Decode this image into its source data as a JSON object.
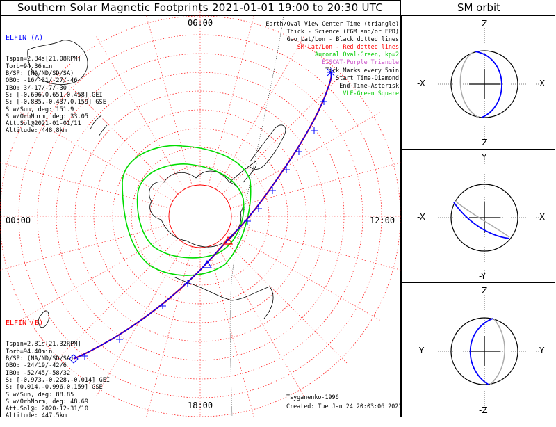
{
  "header": {
    "title": "Southern Solar Magnetic Footprints 2021-01-01 19:00 to 20:30 UTC",
    "orbit_title": "SM orbit"
  },
  "time_labels": {
    "top": "06:00",
    "left": "00:00",
    "right": "12:00",
    "bottom": "18:00"
  },
  "elfin_a": {
    "name": "ELFIN (A)",
    "lines": [
      "Tspin=2.84s[21.08RPM]",
      "Torb=94.36min",
      "B/SP: (NA/ND/SD/SA)",
      "OBO: -16/-31/-27/-46",
      "IBO: 3/-17/-7/-30",
      "S: [-0.606,0.651,0.458] GEI",
      "S: [-0.885,-0.437,0.159] GSE",
      "S w/Sun, deg: 151.9",
      "S w/OrbNorm, deg: 33.05",
      "Att.Sol@2021-01-01/11",
      "Altitude: 448.8km"
    ],
    "color": "#0000ff"
  },
  "elfin_b": {
    "name": "ELFIN (B)",
    "lines": [
      "Tspin=2.81s[21.32RPM]",
      "Torb=94.40min",
      "B/SP: (NA/ND/SD/SA)",
      "OBO: -24/19/-42/6",
      "IBO: -52/45/-58/32",
      "S: [-0.973,-0.228,-0.014] GEI",
      "S: [0.014,-0.996,0.159] GSE",
      "S w/Sun, deg: 88.85",
      "S w/OrbNorm, deg: 48.69",
      "Att.Sol@: 2020-12-31/10",
      "Altitude: 447.5km"
    ],
    "color": "#ff0000"
  },
  "legend": [
    {
      "text": "Earth/Oval View Center Time (triangle)",
      "color": "#000000"
    },
    {
      "text": "Thick - Science (FGM and/or EPD)",
      "color": "#000000"
    },
    {
      "text": "Geo Lat/Lon - Black dotted lines",
      "color": "#000000"
    },
    {
      "text": "SM Lat/Lon - Red dotted lines",
      "color": "#ff0000"
    },
    {
      "text": "Auroral Oval-Green, kp=2",
      "color": "#00cc00"
    },
    {
      "text": "EISCAT-Purple Triangle",
      "color": "#cc55cc"
    },
    {
      "text": "Tick Marks every 5min",
      "color": "#000000"
    },
    {
      "text": "Start Time-Diamond",
      "color": "#000000"
    },
    {
      "text": "End Time-Asterisk",
      "color": "#000000"
    },
    {
      "text": "VLF-Green Square",
      "color": "#00cc00"
    }
  ],
  "credits": {
    "model": "Tsyganenko-1996",
    "created": "Created: Tue Jan 24 20:03:06 2023"
  },
  "orbit_panels": [
    {
      "top": "Z",
      "bottom": "-Z",
      "left": "-X",
      "right": "X"
    },
    {
      "top": "Y",
      "bottom": "-Y",
      "left": "-X",
      "right": "X"
    },
    {
      "top": "Z",
      "bottom": "-Z",
      "left": "-Y",
      "right": "Y"
    }
  ],
  "colors": {
    "sm_grid": "#ff0000",
    "oval": "#00dd00",
    "trace_a": "#0000ff",
    "trace_b": "#ff0000",
    "land": "#000000",
    "orbit_gray": "#aaaaaa"
  }
}
